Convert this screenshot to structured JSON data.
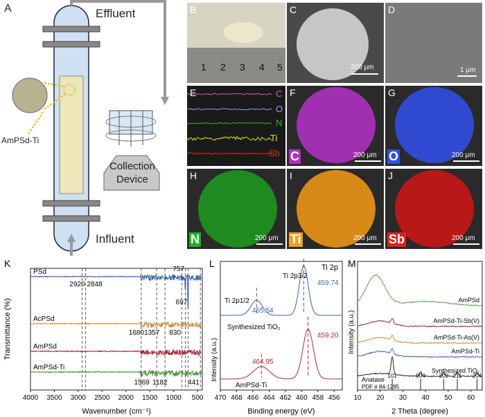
{
  "panelA": {
    "label": "A",
    "effluent": "Effluent",
    "influent": "Influent",
    "collection_line1": "Collection",
    "collection_line2": "Device",
    "ampsd_label": "AmPSd-Ti"
  },
  "panelB": {
    "label": "B",
    "ruler_numbers": [
      "1",
      "2",
      "3",
      "4",
      "5"
    ]
  },
  "panelC": {
    "label": "C",
    "scale": "200 μm"
  },
  "panelD": {
    "label": "D",
    "scale": "1 μm"
  },
  "panelE": {
    "label": "E",
    "lines": [
      "C",
      "O",
      "N",
      "Ti",
      "Sb"
    ],
    "line_colors": [
      "#c85bc8",
      "#8fa0e8",
      "#2db52d",
      "#e8e020",
      "#e03020"
    ]
  },
  "panelF": {
    "label": "F",
    "element": "C",
    "scale": "200 μm",
    "color": "#b030c0"
  },
  "panelG": {
    "label": "G",
    "element": "O",
    "scale": "200 μm",
    "color": "#3050e0"
  },
  "panelH": {
    "label": "H",
    "element": "N",
    "scale": "200 μm",
    "color": "#20b020"
  },
  "panelI": {
    "label": "I",
    "element": "Ti",
    "scale": "200 μm",
    "color": "#f0a020"
  },
  "panelJ": {
    "label": "J",
    "element": "Sb",
    "scale": "200 μm",
    "color": "#e02020"
  },
  "chart_data": [
    {
      "type": "line",
      "panel": "K",
      "xlabel": "Wavenumber (cm⁻¹)",
      "ylabel": "Transmittance (%)",
      "xlim": [
        4000,
        400
      ],
      "xticks": [
        "4000",
        "3500",
        "3000",
        "2500",
        "2000",
        "1500",
        "1000",
        "500"
      ],
      "series": [
        {
          "name": "PSd",
          "color": "#3a5fa8"
        },
        {
          "name": "AcPSd",
          "color": "#c8903a"
        },
        {
          "name": "AmPSd",
          "color": "#9a2838"
        },
        {
          "name": "AmPSd-Ti",
          "color": "#4a8a3a"
        }
      ],
      "dashed_lines": [
        2920,
        2848,
        1680,
        1357,
        1182,
        830,
        757,
        697,
        441
      ],
      "annotations": [
        "2920",
        "2848",
        "757",
        "697",
        "1680",
        "1357",
        "830",
        "1569",
        "1182",
        "441"
      ]
    },
    {
      "type": "line",
      "panel": "L",
      "title": "Ti 2p",
      "xlabel": "Binding energy (eV)",
      "ylabel": "Intensity (a.u.)",
      "xlim": [
        470,
        455
      ],
      "xticks": [
        "470",
        "468",
        "466",
        "464",
        "462",
        "460",
        "458",
        "456"
      ],
      "series": [
        {
          "name": "Synthesized TiO₂",
          "color": "#3a5fa8",
          "peaks": [
            465.54,
            459.74
          ]
        },
        {
          "name": "AmPSd-Ti",
          "color": "#a82a3a",
          "peaks": [
            464.95,
            459.2
          ]
        }
      ],
      "peak_labels": {
        "upper_p12": "Ti 2p1/2",
        "upper_p32": "Ti 2p3/2",
        "upper_v1": "465.54",
        "upper_v2": "459.74",
        "lower_v1": "464.95",
        "lower_v2": "459.20",
        "upper_name": "Synthesized TiO₂",
        "lower_name": "AmPSd-Ti"
      }
    },
    {
      "type": "line",
      "panel": "M",
      "xlabel": "2 Theta (degree)",
      "ylabel": "Intensity (a.u.)",
      "xlim": [
        10,
        65
      ],
      "xticks": [
        "10",
        "20",
        "30",
        "40",
        "50",
        "60"
      ],
      "series": [
        {
          "name": "AmPSd",
          "color": "#5a9a4a"
        },
        {
          "name": "AmPSd-Ti-Sb(V)",
          "color": "#8a2838"
        },
        {
          "name": "AmPSd-Ti-As(V)",
          "color": "#c8903a"
        },
        {
          "name": "AmPSd-Ti",
          "color": "#3a5fa8"
        },
        {
          "name": "Synthesized TiO₂",
          "color": "#222222"
        }
      ],
      "reference": {
        "name": "Anatase",
        "pdf": "PDF # 84-1285",
        "peaks": [
          {
            "x": 25.3,
            "label": "101"
          },
          {
            "x": 37.8,
            "label": "004"
          },
          {
            "x": 48.0,
            "label": "200"
          },
          {
            "x": 54.0,
            "label": "211"
          },
          {
            "x": 62.7,
            "label": "204"
          }
        ]
      }
    }
  ],
  "labels": {
    "K": "K",
    "L": "L",
    "M": "M"
  }
}
